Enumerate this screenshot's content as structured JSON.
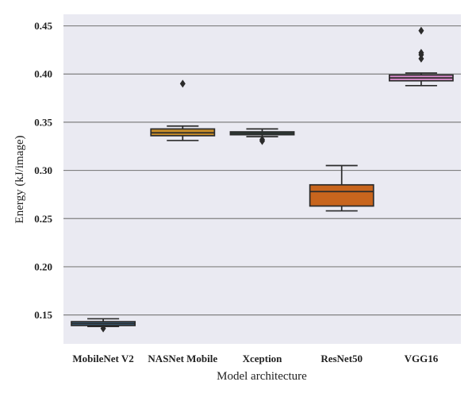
{
  "chart_data": {
    "type": "box",
    "title": "",
    "xlabel": "Model architecture",
    "ylabel": "Energy (kJ/image)",
    "ylim": [
      0.12,
      0.462
    ],
    "yticks": [
      "0.15",
      "0.20",
      "0.25",
      "0.30",
      "0.35",
      "0.40",
      "0.45"
    ],
    "grid": true,
    "background": "#eaeaf2",
    "gridColor": "#808080",
    "lineColor": "#2b2b2b",
    "categories": [
      "MobileNet V2",
      "NASNet Mobile",
      "Xception",
      "ResNet50",
      "VGG16"
    ],
    "boxes": [
      {
        "category": "MobileNet V2",
        "whisker_low": 0.138,
        "q1": 0.139,
        "median": 0.141,
        "q3": 0.143,
        "whisker_high": 0.146,
        "outliers": [
          0.136
        ],
        "color": "#3a6a8c"
      },
      {
        "category": "NASNet Mobile",
        "whisker_low": 0.331,
        "q1": 0.336,
        "median": 0.339,
        "q3": 0.343,
        "whisker_high": 0.346,
        "outliers": [
          0.39
        ],
        "color": "#c88e2a"
      },
      {
        "category": "Xception",
        "whisker_low": 0.335,
        "q1": 0.337,
        "median": 0.3385,
        "q3": 0.34,
        "whisker_high": 0.343,
        "outliers": [
          0.332,
          0.3305
        ],
        "color": "#2e8c6a"
      },
      {
        "category": "ResNet50",
        "whisker_low": 0.258,
        "q1": 0.263,
        "median": 0.278,
        "q3": 0.285,
        "whisker_high": 0.305,
        "outliers": [],
        "color": "#c8651d"
      },
      {
        "category": "VGG16",
        "whisker_low": 0.388,
        "q1": 0.393,
        "median": 0.396,
        "q3": 0.399,
        "whisker_high": 0.401,
        "outliers": [
          0.416,
          0.42,
          0.422,
          0.445
        ],
        "color": "#d98ccb"
      }
    ]
  }
}
